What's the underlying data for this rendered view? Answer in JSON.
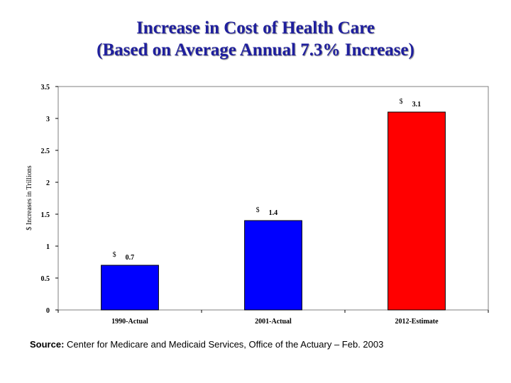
{
  "title_line1": "Increase in Cost of Health Care",
  "title_line2": "(Based on Average Annual 7.3% Increase)",
  "source_label": "Source:",
  "source_text": " Center for Medicare and Medicaid Services, Office of the Actuary – Feb. 2003",
  "colors": {
    "title": "#1f1f9e",
    "actual": "#0000ff",
    "estimate": "#ff0000"
  },
  "chart_data": {
    "type": "bar",
    "title": "",
    "xlabel": "",
    "ylabel": "$ Increases in Trillions",
    "ylim": [
      0,
      3.5
    ],
    "yticks": [
      "0",
      "0.5",
      "1",
      "1.5",
      "2",
      "2.5",
      "3",
      "3.5"
    ],
    "categories": [
      "1990-Actual",
      "2001-Actual",
      "2012-Estimate"
    ],
    "values": [
      0.7,
      1.4,
      3.1
    ],
    "data_labels": [
      {
        "prefix": "$",
        "value": "0.7"
      },
      {
        "prefix": "$",
        "value": "1.4"
      },
      {
        "prefix": "$",
        "value": "3.1"
      }
    ],
    "bar_colors": [
      "#0000ff",
      "#0000ff",
      "#ff0000"
    ],
    "grid": false,
    "legend": "none"
  }
}
